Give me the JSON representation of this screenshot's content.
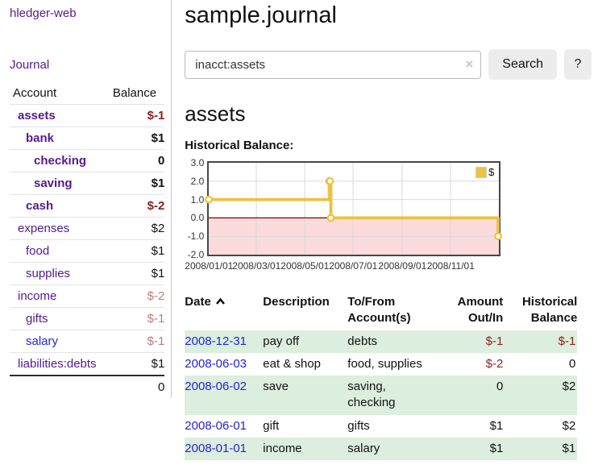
{
  "colors": {
    "link_purple": "#551a8b",
    "link_blue": "#2424cc",
    "negative_strong": "#8e1f1f",
    "negative_soft": "#b97e7e",
    "row_stripe_green": "#dceedd",
    "chart_gold": "#EDC240",
    "chart_negative_fill": "#fbdbdb",
    "chart_zero_line": "#800000",
    "grid_line": "#d9d9d9",
    "chart_border": "#474747",
    "button_bg": "#ececec"
  },
  "sidebar": {
    "app_title": "hledger-web",
    "journal_link": "Journal",
    "accounts": {
      "header_account": "Account",
      "header_balance": "Balance",
      "rows": [
        {
          "name": "assets",
          "balance": "$-1",
          "level": 1,
          "bold": true,
          "visited": true
        },
        {
          "name": "bank",
          "balance": "$1",
          "level": 2,
          "bold": true,
          "visited": true
        },
        {
          "name": "checking",
          "balance": "0",
          "level": 3,
          "bold": true,
          "visited": true
        },
        {
          "name": "saving",
          "balance": "$1",
          "level": 3,
          "bold": true,
          "visited": true
        },
        {
          "name": "cash",
          "balance": "$-2",
          "level": 2,
          "bold": true,
          "visited": true
        },
        {
          "name": "expenses",
          "balance": "$2",
          "level": 1,
          "bold": false,
          "visited": true
        },
        {
          "name": "food",
          "balance": "$1",
          "level": 2,
          "bold": false,
          "visited": true
        },
        {
          "name": "supplies",
          "balance": "$1",
          "level": 2,
          "bold": false,
          "visited": true
        },
        {
          "name": "income",
          "balance": "$-2",
          "level": 1,
          "bold": false,
          "visited": true
        },
        {
          "name": "gifts",
          "balance": "$-1",
          "level": 2,
          "bold": false,
          "visited": true
        },
        {
          "name": "salary",
          "balance": "$-1",
          "level": 2,
          "bold": false,
          "visited": false
        },
        {
          "name": "liabilities:debts",
          "balance": "$1",
          "level": 1,
          "bold": false,
          "visited": true
        }
      ],
      "total": "0"
    }
  },
  "main": {
    "title": "sample.journal",
    "search": {
      "value": "inacct:assets",
      "clear_icon": "×",
      "button_label": "Search",
      "help_label": "?"
    },
    "account_heading": "assets",
    "chart_label": "Historical Balance:"
  },
  "chart_data": {
    "type": "line",
    "title": "Historical Balance",
    "step": true,
    "series": [
      {
        "name": "$",
        "points": [
          [
            "2008-01-01",
            1
          ],
          [
            "2008-06-01",
            2
          ],
          [
            "2008-06-02",
            2
          ],
          [
            "2008-06-03",
            0
          ],
          [
            "2008-12-31",
            -1
          ]
        ]
      }
    ],
    "x_ticks": [
      "2008/01/01",
      "2008/03/01",
      "2008/05/01",
      "2008/07/01",
      "2008/09/01",
      "2008/11/01"
    ],
    "y_ticks": [
      "3.0",
      "2.0",
      "1.0",
      "0.0",
      "-1.0",
      "-2.0"
    ],
    "xlim": [
      "2008-01-01",
      "2009-01-01"
    ],
    "ylim": [
      -2,
      3
    ],
    "grid": true,
    "legend_position": "top-right",
    "negative_region_filled": true
  },
  "register": {
    "headers": {
      "date": "Date",
      "description": "Description",
      "account": "To/From Account(s)",
      "amount": "Amount Out/In",
      "balance": "Historical Balance"
    },
    "sort": "ascending",
    "rows": [
      {
        "date": "2008-12-31",
        "description": "pay off",
        "accounts": "debts",
        "amount": "$-1",
        "balance": "$-1"
      },
      {
        "date": "2008-06-03",
        "description": "eat & shop",
        "accounts": "food, supplies",
        "amount": "$-2",
        "balance": "0"
      },
      {
        "date": "2008-06-02",
        "description": "save",
        "accounts": "saving, checking",
        "amount": "0",
        "balance": "$2"
      },
      {
        "date": "2008-06-01",
        "description": "gift",
        "accounts": "gifts",
        "amount": "$1",
        "balance": "$2"
      },
      {
        "date": "2008-01-01",
        "description": "income",
        "accounts": "salary",
        "amount": "$1",
        "balance": "$1"
      }
    ]
  }
}
